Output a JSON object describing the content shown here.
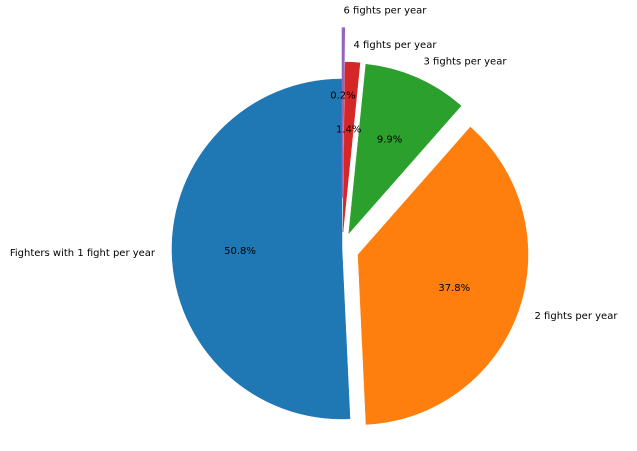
{
  "chart_data": {
    "type": "pie",
    "start_angle_deg": 90,
    "direction": "counterclockwise",
    "slices": [
      {
        "label": "Fighters with 1 fight per year",
        "value": 50.8,
        "pct_label": "50.8%",
        "color": "#1f77b4",
        "explode": 0.0
      },
      {
        "label": "2 fights per year",
        "value": 37.8,
        "pct_label": "37.8%",
        "color": "#ff7f0e",
        "explode": 0.1
      },
      {
        "label": "3 fights per year",
        "value": 9.9,
        "pct_label": "9.9%",
        "color": "#2ca02c",
        "explode": 0.1
      },
      {
        "label": "4 fights per year",
        "value": 1.4,
        "pct_label": "1.4%",
        "color": "#d62728",
        "explode": 0.1
      },
      {
        "label": "6 fights per year",
        "value": 0.2,
        "pct_label": "0.2%",
        "color": "#9467bd",
        "explode": 0.3
      }
    ]
  }
}
